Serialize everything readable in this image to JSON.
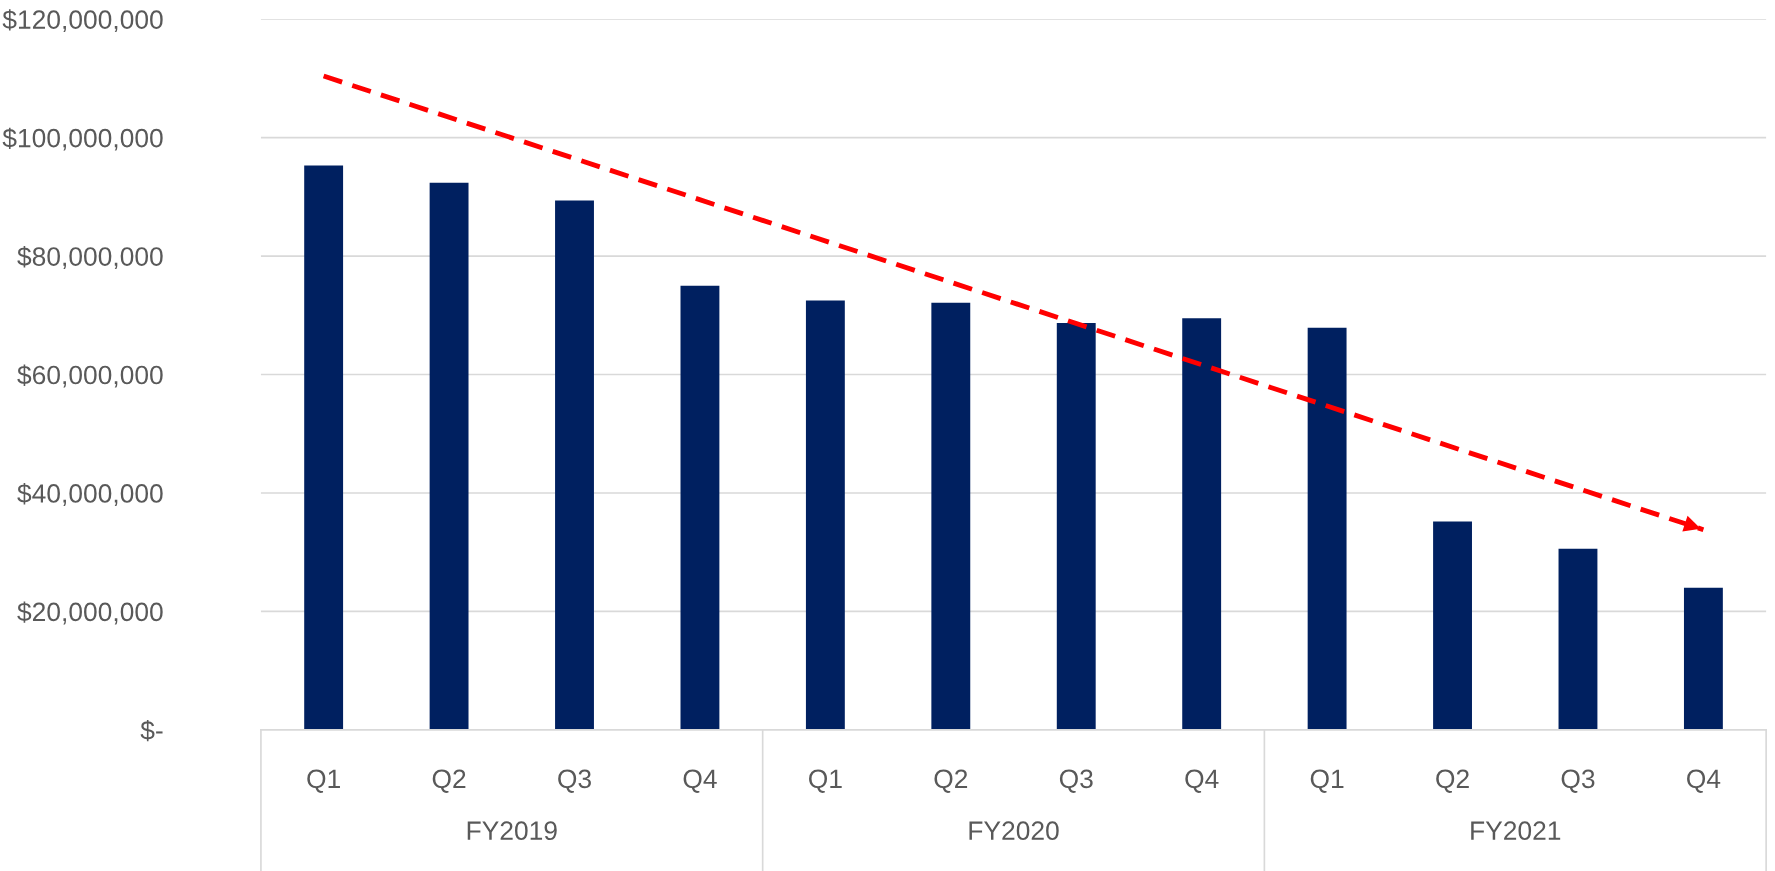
{
  "chart_data": {
    "type": "bar",
    "categories": [
      "Q1",
      "Q2",
      "Q3",
      "Q4",
      "Q1",
      "Q2",
      "Q3",
      "Q4",
      "Q1",
      "Q2",
      "Q3",
      "Q4"
    ],
    "series": [
      {
        "color": "#002060",
        "values": [
          95300000,
          92400000,
          89400000,
          75000000,
          72500000,
          72100000,
          68700000,
          69500000,
          67900000,
          35200000,
          30600000,
          24000000
        ]
      },
      {
        "type": "line",
        "color": "#ff0000",
        "line_style": "dashed",
        "values": [
          110400000,
          null,
          null,
          null,
          null,
          null,
          null,
          null,
          null,
          null,
          null,
          33800000
        ]
      }
    ],
    "annotations": [
      "FY2019",
      "FY2020",
      "FY2021"
    ],
    "ylim": [
      0,
      120000000
    ],
    "yticks": [
      {
        "value": 0,
        "label": "$-"
      },
      {
        "value": 20000000,
        "label": "$20,000,000"
      },
      {
        "value": 40000000,
        "label": "$40,000,000"
      },
      {
        "value": 60000000,
        "label": "$60,000,000"
      },
      {
        "value": 80000000,
        "label": "$80,000,000"
      },
      {
        "value": 100000000,
        "label": "$100,000,000"
      },
      {
        "value": 120000000,
        "label": "$120,000,000"
      }
    ],
    "grid": "y",
    "legend": false
  }
}
